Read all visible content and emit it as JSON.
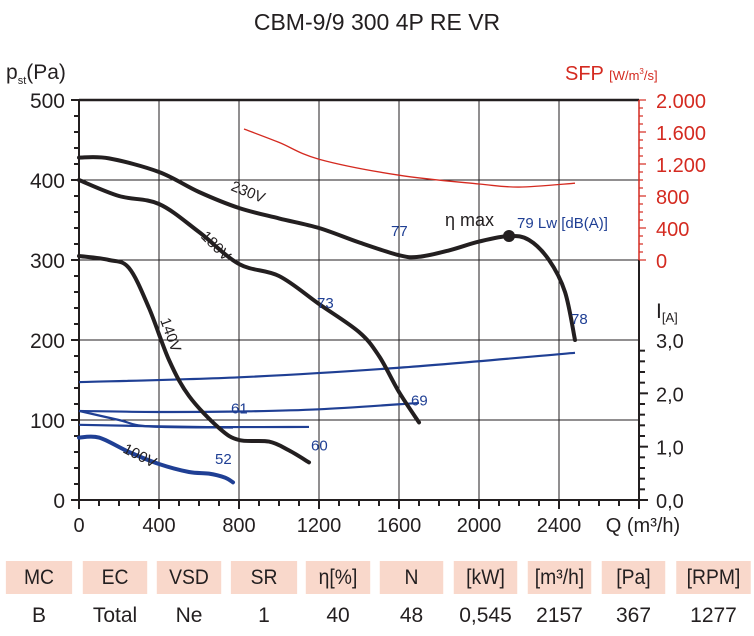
{
  "chart_data": {
    "type": "line",
    "title": "CBM-9/9 300 4P RE VR",
    "xlabel": "Q (m³/h)",
    "ylabel": "p_st(Pa)",
    "y2label": "SFP [W/m³/s]",
    "y3label": "I[A]",
    "xlim": [
      0,
      2800
    ],
    "ylim": [
      0,
      500
    ],
    "y2lim": [
      0,
      2000
    ],
    "y3lim": [
      0,
      3
    ],
    "xticks": [
      0,
      400,
      800,
      1200,
      1600,
      2000,
      2400
    ],
    "xtick_labels": [
      "0",
      "400",
      "800",
      "1200",
      "1600",
      "2000",
      "2400"
    ],
    "yticks": [
      0,
      100,
      200,
      300,
      400,
      500
    ],
    "ytick_labels": [
      "0",
      "100",
      "200",
      "300",
      "400",
      "500"
    ],
    "y2ticks": [
      0,
      400,
      800,
      1200,
      1600,
      2000
    ],
    "y2tick_labels": [
      "0",
      "400",
      "800",
      "1.200",
      "1.600",
      "2.000"
    ],
    "y3ticks": [
      0,
      1,
      2,
      3
    ],
    "y3tick_labels": [
      "0,0",
      "1,0",
      "2,0",
      "3,0"
    ],
    "grid": true,
    "pressure_series": [
      {
        "name": "230V",
        "points": [
          [
            0,
            428
          ],
          [
            150,
            427
          ],
          [
            400,
            410
          ],
          [
            600,
            385
          ],
          [
            800,
            365
          ],
          [
            1000,
            352
          ],
          [
            1200,
            340
          ],
          [
            1400,
            322
          ],
          [
            1600,
            306
          ],
          [
            1700,
            304
          ],
          [
            1850,
            312
          ],
          [
            2000,
            323
          ],
          [
            2150,
            330
          ],
          [
            2250,
            325
          ],
          [
            2350,
            300
          ],
          [
            2430,
            260
          ],
          [
            2480,
            200
          ]
        ]
      },
      {
        "name": "180V",
        "points": [
          [
            0,
            400
          ],
          [
            200,
            380
          ],
          [
            400,
            370
          ],
          [
            600,
            335
          ],
          [
            800,
            295
          ],
          [
            1000,
            280
          ],
          [
            1200,
            245
          ],
          [
            1400,
            210
          ],
          [
            1500,
            180
          ],
          [
            1600,
            135
          ],
          [
            1700,
            97
          ]
        ]
      },
      {
        "name": "140V",
        "points": [
          [
            0,
            305
          ],
          [
            150,
            300
          ],
          [
            250,
            290
          ],
          [
            350,
            240
          ],
          [
            450,
            175
          ],
          [
            550,
            130
          ],
          [
            700,
            90
          ],
          [
            800,
            75
          ],
          [
            950,
            73
          ],
          [
            1050,
            62
          ],
          [
            1150,
            47
          ]
        ]
      },
      {
        "name": "100V",
        "points": [
          [
            0,
            78
          ],
          [
            100,
            78
          ],
          [
            250,
            60
          ],
          [
            400,
            45
          ],
          [
            550,
            35
          ],
          [
            650,
            33
          ],
          [
            730,
            28
          ],
          [
            770,
            22
          ]
        ]
      }
    ],
    "current_series": [
      {
        "name": "230V",
        "points": [
          [
            0,
            2.21
          ],
          [
            800,
            2.3
          ],
          [
            1600,
            2.48
          ],
          [
            2480,
            2.76
          ]
        ]
      },
      {
        "name": "180V",
        "points": [
          [
            0,
            1.67
          ],
          [
            400,
            1.65
          ],
          [
            800,
            1.66
          ],
          [
            1200,
            1.7
          ],
          [
            1700,
            1.82
          ]
        ]
      },
      {
        "name": "140V",
        "points": [
          [
            0,
            1.41
          ],
          [
            600,
            1.37
          ],
          [
            1150,
            1.37
          ]
        ]
      },
      {
        "name": "100V",
        "points": [
          [
            0,
            1.67
          ],
          [
            200,
            1.5
          ],
          [
            350,
            1.38
          ],
          [
            770,
            1.36
          ]
        ]
      }
    ],
    "sfp_series": {
      "name": "SFP",
      "points": [
        [
          825,
          1637
        ],
        [
          1000,
          1470
        ],
        [
          1200,
          1260
        ],
        [
          1600,
          1060
        ],
        [
          2000,
          950
        ],
        [
          2200,
          912
        ],
        [
          2480,
          960
        ]
      ]
    },
    "eta_max": {
      "label": "η max",
      "point": [
        2150,
        330
      ]
    },
    "sound_labels": [
      {
        "text": "77",
        "at": [
          1600,
          330
        ]
      },
      {
        "text": "79 Lw [dB(A)]",
        "at": [
          2230,
          340
        ]
      },
      {
        "text": "78",
        "at": [
          2500,
          220
        ]
      },
      {
        "text": "73",
        "at": [
          1230,
          240
        ]
      },
      {
        "text": "69",
        "at": [
          1700,
          118
        ]
      },
      {
        "text": "61",
        "at": [
          800,
          108
        ]
      },
      {
        "text": "60",
        "at": [
          1200,
          62
        ]
      },
      {
        "text": "52",
        "at": [
          720,
          45
        ]
      }
    ],
    "curve_labels": [
      "230V",
      "180V",
      "140V",
      "100V"
    ],
    "colors": {
      "pressure": "#231f20",
      "current": "#1f3f94",
      "sfp": "#d42a20",
      "sound_label": "#1f3f94",
      "sfp_axis": "#d42a20"
    }
  },
  "table": {
    "headers": [
      "MC",
      "EC",
      "VSD",
      "SR",
      "η[%]",
      "N",
      "[kW]",
      "[m³/h]",
      "[Pa]",
      "[RPM]"
    ],
    "values": [
      "B",
      "Total",
      "Ne",
      "1",
      "40",
      "48",
      "0,545",
      "2157",
      "367",
      "1277"
    ],
    "header_color": "#f9d8cb"
  }
}
